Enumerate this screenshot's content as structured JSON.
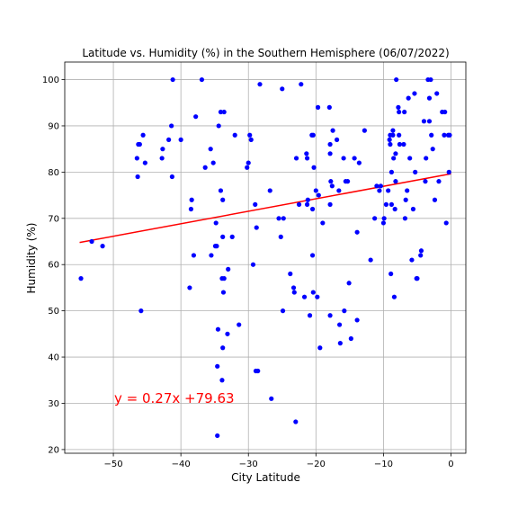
{
  "chart_data": {
    "type": "scatter",
    "title": "Latitude vs. Humidity (%) in the Southern Hemisphere (06/07/2022)",
    "xlabel": "City Latitude",
    "ylabel": "Humidity (%)",
    "xlim": [
      -57.2,
      2.2
    ],
    "ylim": [
      19.2,
      103.8
    ],
    "xticks": [
      -50,
      -40,
      -30,
      -20,
      -10,
      0
    ],
    "yticks": [
      20,
      30,
      40,
      50,
      60,
      70,
      80,
      90,
      100
    ],
    "grid": true,
    "point_color": "#0000ff",
    "regression": {
      "equation_label": "y = 0.27x +79.63",
      "slope": 0.27,
      "intercept": 79.63,
      "x_range": [
        -55,
        0
      ],
      "color": "#ff0000"
    },
    "points": [
      [
        -54.8,
        57
      ],
      [
        -53.2,
        65
      ],
      [
        -51.6,
        64
      ],
      [
        -46.4,
        79
      ],
      [
        -46.3,
        86
      ],
      [
        -46.1,
        86
      ],
      [
        -45.9,
        50
      ],
      [
        -45.6,
        88
      ],
      [
        -45.3,
        82
      ],
      [
        -46.5,
        83
      ],
      [
        -42.8,
        83
      ],
      [
        -42.7,
        85
      ],
      [
        -41.8,
        87
      ],
      [
        -41.4,
        90
      ],
      [
        -41.3,
        79
      ],
      [
        -41.2,
        100
      ],
      [
        -40.0,
        87
      ],
      [
        -38.7,
        55
      ],
      [
        -38.5,
        72
      ],
      [
        -38.4,
        74
      ],
      [
        -38.1,
        62
      ],
      [
        -37.8,
        92
      ],
      [
        -36.9,
        100
      ],
      [
        -36.4,
        81
      ],
      [
        -35.6,
        85
      ],
      [
        -35.5,
        62
      ],
      [
        -35.2,
        82
      ],
      [
        -34.9,
        64
      ],
      [
        -34.8,
        69
      ],
      [
        -34.7,
        64
      ],
      [
        -34.6,
        38
      ],
      [
        -34.6,
        23
      ],
      [
        -34.5,
        46
      ],
      [
        -34.4,
        90
      ],
      [
        -34.1,
        93
      ],
      [
        -34.1,
        76
      ],
      [
        -33.9,
        35
      ],
      [
        -33.8,
        42
      ],
      [
        -33.8,
        74
      ],
      [
        -33.8,
        66
      ],
      [
        -33.9,
        57
      ],
      [
        -33.6,
        57
      ],
      [
        -33.6,
        93
      ],
      [
        -33.7,
        54
      ],
      [
        -33.1,
        45
      ],
      [
        -33.0,
        59
      ],
      [
        -32.4,
        66
      ],
      [
        -32.0,
        88
      ],
      [
        -31.4,
        47
      ],
      [
        -30.2,
        81
      ],
      [
        -30.0,
        82
      ],
      [
        -29.8,
        88
      ],
      [
        -29.6,
        87
      ],
      [
        -29.3,
        60
      ],
      [
        -29.0,
        73
      ],
      [
        -28.9,
        37
      ],
      [
        -28.8,
        68
      ],
      [
        -28.6,
        37
      ],
      [
        -28.3,
        99
      ],
      [
        -26.8,
        76
      ],
      [
        -26.6,
        31
      ],
      [
        -25.5,
        70
      ],
      [
        -25.2,
        66
      ],
      [
        -25.0,
        98
      ],
      [
        -24.9,
        50
      ],
      [
        -24.8,
        70
      ],
      [
        -23.8,
        58
      ],
      [
        -23.3,
        55
      ],
      [
        -23.2,
        54
      ],
      [
        -23.0,
        26
      ],
      [
        -22.9,
        83
      ],
      [
        -22.5,
        73
      ],
      [
        -22.2,
        99
      ],
      [
        -21.7,
        53
      ],
      [
        -21.4,
        84
      ],
      [
        -21.3,
        83
      ],
      [
        -21.3,
        73
      ],
      [
        -21.2,
        74
      ],
      [
        -20.9,
        49
      ],
      [
        -20.6,
        88
      ],
      [
        -20.4,
        88
      ],
      [
        -20.5,
        72
      ],
      [
        -20.5,
        62
      ],
      [
        -20.4,
        54
      ],
      [
        -20.3,
        81
      ],
      [
        -20.0,
        76
      ],
      [
        -19.8,
        53
      ],
      [
        -19.7,
        94
      ],
      [
        -19.6,
        75
      ],
      [
        -19.4,
        42
      ],
      [
        -19.0,
        69
      ],
      [
        -18.0,
        94
      ],
      [
        -17.9,
        86
      ],
      [
        -17.9,
        84
      ],
      [
        -17.9,
        49
      ],
      [
        -17.9,
        73
      ],
      [
        -17.8,
        78
      ],
      [
        -17.6,
        77
      ],
      [
        -17.5,
        89
      ],
      [
        -16.9,
        87
      ],
      [
        -16.6,
        76
      ],
      [
        -16.5,
        47
      ],
      [
        -16.4,
        43
      ],
      [
        -15.9,
        83
      ],
      [
        -15.8,
        50
      ],
      [
        -15.6,
        78
      ],
      [
        -15.3,
        78
      ],
      [
        -15.1,
        56
      ],
      [
        -14.8,
        44
      ],
      [
        -14.3,
        83
      ],
      [
        -13.9,
        48
      ],
      [
        -13.9,
        67
      ],
      [
        -13.6,
        82
      ],
      [
        -12.8,
        89
      ],
      [
        -11.9,
        61
      ],
      [
        -11.3,
        70
      ],
      [
        -11.0,
        77
      ],
      [
        -10.6,
        76
      ],
      [
        -10.4,
        77
      ],
      [
        -10.0,
        69
      ],
      [
        -9.9,
        70
      ],
      [
        -9.6,
        73
      ],
      [
        -9.3,
        76
      ],
      [
        -9.1,
        87
      ],
      [
        -9.0,
        86
      ],
      [
        -9.0,
        88
      ],
      [
        -8.9,
        58
      ],
      [
        -8.8,
        80
      ],
      [
        -8.8,
        73
      ],
      [
        -8.6,
        88
      ],
      [
        -8.6,
        89
      ],
      [
        -8.5,
        83
      ],
      [
        -8.4,
        53
      ],
      [
        -8.3,
        72
      ],
      [
        -8.2,
        84
      ],
      [
        -8.2,
        78
      ],
      [
        -8.1,
        100
      ],
      [
        -7.8,
        94
      ],
      [
        -7.7,
        93
      ],
      [
        -7.7,
        88
      ],
      [
        -7.6,
        86
      ],
      [
        -7.0,
        86
      ],
      [
        -6.9,
        93
      ],
      [
        -6.8,
        70
      ],
      [
        -6.7,
        74
      ],
      [
        -6.5,
        76
      ],
      [
        -6.3,
        96
      ],
      [
        -6.1,
        83
      ],
      [
        -5.8,
        61
      ],
      [
        -5.6,
        72
      ],
      [
        -5.4,
        97
      ],
      [
        -5.3,
        80
      ],
      [
        -5.1,
        57
      ],
      [
        -5.0,
        57
      ],
      [
        -4.5,
        62
      ],
      [
        -4.4,
        63
      ],
      [
        -4.0,
        91
      ],
      [
        -3.8,
        78
      ],
      [
        -3.7,
        83
      ],
      [
        -3.4,
        100
      ],
      [
        -3.2,
        91
      ],
      [
        -3.2,
        96
      ],
      [
        -3.0,
        100
      ],
      [
        -2.9,
        88
      ],
      [
        -2.7,
        85
      ],
      [
        -2.4,
        74
      ],
      [
        -2.1,
        97
      ],
      [
        -1.8,
        78
      ],
      [
        -1.3,
        93
      ],
      [
        -1.0,
        88
      ],
      [
        -0.9,
        93
      ],
      [
        -0.7,
        69
      ],
      [
        -0.4,
        88
      ],
      [
        -0.3,
        80
      ],
      [
        -0.2,
        88
      ]
    ]
  }
}
